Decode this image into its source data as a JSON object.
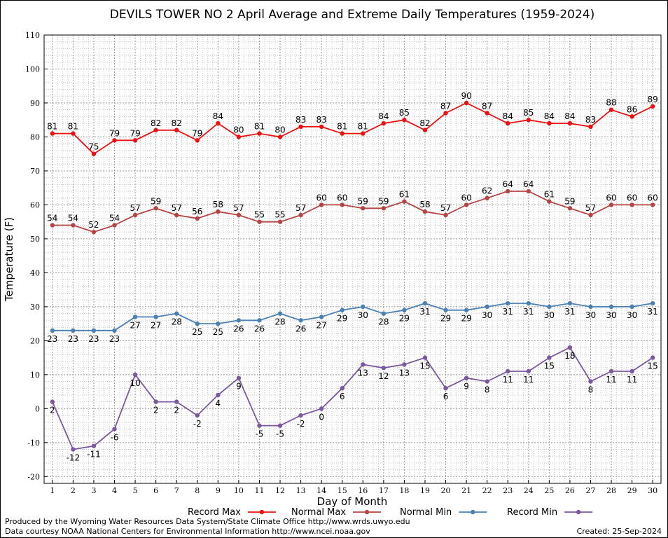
{
  "chart_data": {
    "type": "line",
    "title": "DEVILS TOWER NO 2 April Average and Extreme Daily Temperatures (1959-2024)",
    "xlabel": "Day of Month",
    "ylabel": "Temperature (F)",
    "x": [
      1,
      2,
      3,
      4,
      5,
      6,
      7,
      8,
      9,
      10,
      11,
      12,
      13,
      14,
      15,
      16,
      17,
      18,
      19,
      20,
      21,
      22,
      23,
      24,
      25,
      26,
      27,
      28,
      29,
      30
    ],
    "xlim": [
      0.6,
      30.4
    ],
    "ylim": [
      -22,
      110
    ],
    "yticks": [
      -20,
      -10,
      0,
      10,
      20,
      30,
      40,
      50,
      60,
      70,
      80,
      90,
      100,
      110
    ],
    "grid": true,
    "legend_position": "bottom",
    "series": [
      {
        "name": "Record Max",
        "color": "#ee1111",
        "label_position": "above",
        "values": [
          81,
          81,
          75,
          79,
          79,
          82,
          82,
          79,
          84,
          80,
          81,
          80,
          83,
          83,
          81,
          81,
          84,
          85,
          82,
          87,
          90,
          87,
          84,
          85,
          84,
          84,
          83,
          88,
          86,
          89
        ]
      },
      {
        "name": "Normal Max",
        "color": "#b54444",
        "label_position": "above",
        "values": [
          54,
          54,
          52,
          54,
          57,
          59,
          57,
          56,
          58,
          57,
          55,
          55,
          57,
          60,
          60,
          59,
          59,
          61,
          58,
          57,
          60,
          62,
          64,
          64,
          61,
          59,
          57,
          60,
          60,
          60
        ]
      },
      {
        "name": "Normal Min",
        "color": "#4a80b4",
        "label_position": "below",
        "values": [
          23,
          23,
          23,
          23,
          27,
          27,
          28,
          25,
          25,
          26,
          26,
          28,
          26,
          27,
          29,
          30,
          28,
          29,
          31,
          29,
          29,
          30,
          31,
          31,
          30,
          31,
          30,
          30,
          30,
          31
        ]
      },
      {
        "name": "Record Min",
        "color": "#7b58a0",
        "label_position": "below",
        "values": [
          2,
          -12,
          -11,
          -6,
          10,
          2,
          2,
          -2,
          4,
          9,
          -5,
          -5,
          -2,
          0,
          6,
          13,
          12,
          13,
          15,
          6,
          9,
          8,
          11,
          11,
          15,
          18,
          8,
          11,
          11,
          15
        ]
      }
    ]
  },
  "footer": {
    "produced_by": "Produced by the Wyoming Water Resources Data System/State Climate Office http://www.wrds.uwyo.edu",
    "courtesy": "Data courtesy NOAA National Centers for Environmental Information http://www.ncei.noaa.gov",
    "created": "Created:  25-Sep-2024"
  }
}
